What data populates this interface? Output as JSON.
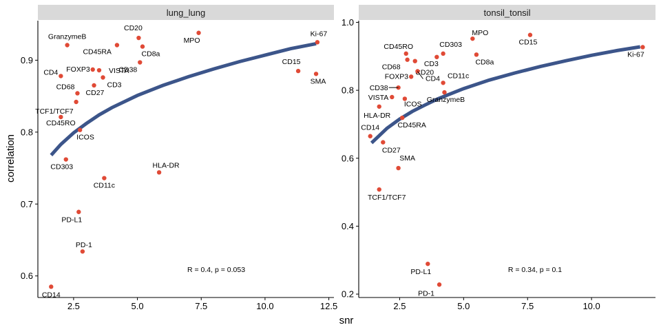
{
  "axis_titles": {
    "x": "snr",
    "y": "correlation"
  },
  "colors": {
    "point": "#e04a36",
    "fit_line": "#3c558a",
    "strip_bg": "#d9d9d9",
    "axis": "#000000"
  },
  "chart_data": [
    {
      "type": "scatter",
      "panel": "lung_lung",
      "xlim": [
        1.1,
        12.7
      ],
      "ylim": [
        0.57,
        0.955
      ],
      "x_ticks": [
        2.5,
        5.0,
        7.5,
        10.0,
        12.5
      ],
      "x_tick_labels": [
        "2.5",
        "5.0",
        "7.5",
        "10.0",
        "12.5"
      ],
      "y_ticks": [
        0.6,
        0.7,
        0.8,
        0.9
      ],
      "y_tick_labels": [
        "0.6",
        "0.7",
        "0.8",
        "0.9"
      ],
      "stat_label": "R = 0.4, p = 0.053",
      "fit": {
        "x": [
          1.62,
          2.0,
          2.5,
          3.0,
          3.5,
          4.0,
          5.0,
          6.0,
          7.0,
          8.0,
          9.0,
          10.0,
          11.0,
          12.0
        ],
        "y": [
          0.768,
          0.783,
          0.799,
          0.812,
          0.824,
          0.834,
          0.851,
          0.865,
          0.877,
          0.888,
          0.898,
          0.907,
          0.916,
          0.923
        ]
      },
      "points": [
        {
          "label": "GranzymeB",
          "x": 2.25,
          "y": 0.921
        },
        {
          "label": "CD20",
          "x": 5.05,
          "y": 0.931
        },
        {
          "label": "MPO",
          "x": 7.4,
          "y": 0.938
        },
        {
          "label": "Ki-67",
          "x": 12.05,
          "y": 0.925
        },
        {
          "label": "CD45RA",
          "x": 4.2,
          "y": 0.921
        },
        {
          "label": "CD8a",
          "x": 5.2,
          "y": 0.919
        },
        {
          "label": "VISTA",
          "x": 3.5,
          "y": 0.886
        },
        {
          "label": "FOXP3",
          "x": 3.25,
          "y": 0.887
        },
        {
          "label": "CD38",
          "x": 5.1,
          "y": 0.897
        },
        {
          "label": "CD4",
          "x": 2.0,
          "y": 0.878
        },
        {
          "label": "CD3",
          "x": 3.65,
          "y": 0.876
        },
        {
          "label": "CD15",
          "x": 11.3,
          "y": 0.885
        },
        {
          "label": "SMA",
          "x": 12.0,
          "y": 0.881
        },
        {
          "label": "CD68",
          "x": 2.65,
          "y": 0.854
        },
        {
          "label": "CD27",
          "x": 3.3,
          "y": 0.865
        },
        {
          "label": "TCF1/TCF7",
          "x": 2.6,
          "y": 0.842
        },
        {
          "label": "CD45RO",
          "x": 2.0,
          "y": 0.821
        },
        {
          "label": "ICOS",
          "x": 2.75,
          "y": 0.803
        },
        {
          "label": "CD303",
          "x": 2.2,
          "y": 0.762
        },
        {
          "label": "CD11c",
          "x": 3.7,
          "y": 0.736
        },
        {
          "label": "HLA-DR",
          "x": 5.85,
          "y": 0.744
        },
        {
          "label": "PD-L1",
          "x": 2.7,
          "y": 0.689
        },
        {
          "label": "PD-1",
          "x": 2.85,
          "y": 0.634
        },
        {
          "label": "CD14",
          "x": 1.62,
          "y": 0.585
        }
      ]
    },
    {
      "type": "scatter",
      "panel": "tonsil_tonsil",
      "xlim": [
        0.9,
        12.5
      ],
      "ylim": [
        0.19,
        1.005
      ],
      "x_ticks": [
        2.5,
        5.0,
        7.5,
        10.0
      ],
      "x_tick_labels": [
        "2.5",
        "5.0",
        "7.5",
        "10.0"
      ],
      "y_ticks": [
        0.2,
        0.4,
        0.6,
        0.8,
        1.0
      ],
      "y_tick_labels": [
        "0.2",
        "0.4",
        "0.6",
        "0.8",
        "1.0"
      ],
      "stat_label": "R = 0.34, p = 0.1",
      "fit": {
        "x": [
          1.4,
          2.0,
          2.5,
          3.0,
          3.5,
          4.0,
          5.0,
          6.0,
          7.0,
          8.0,
          9.0,
          10.0,
          11.0,
          11.9
        ],
        "y": [
          0.645,
          0.688,
          0.715,
          0.738,
          0.757,
          0.775,
          0.805,
          0.83,
          0.851,
          0.87,
          0.887,
          0.903,
          0.917,
          0.928
        ]
      },
      "points": [
        {
          "label": "MPO",
          "x": 5.35,
          "y": 0.952
        },
        {
          "label": "CD15",
          "x": 7.6,
          "y": 0.963
        },
        {
          "label": "Ki-67",
          "x": 12.0,
          "y": 0.927
        },
        {
          "label": "CD45RO",
          "x": 2.75,
          "y": 0.908
        },
        {
          "label": "CD303",
          "x": 4.2,
          "y": 0.908
        },
        {
          "label": "CD3",
          "x": 3.95,
          "y": 0.898
        },
        {
          "label": "CD8a",
          "x": 5.5,
          "y": 0.905
        },
        {
          "label": "CD68",
          "x": 2.8,
          "y": 0.89
        },
        {
          "label": "CD20",
          "x": 3.1,
          "y": 0.886
        },
        {
          "label": "FOXP3",
          "x": 2.95,
          "y": 0.84
        },
        {
          "label": "CD4",
          "x": 3.2,
          "y": 0.856
        },
        {
          "label": "CD11c",
          "x": 4.2,
          "y": 0.822
        },
        {
          "label": "CD38",
          "x": 2.45,
          "y": 0.808
        },
        {
          "label": "GranzymeB",
          "x": 4.25,
          "y": 0.794
        },
        {
          "label": "VISTA",
          "x": 2.2,
          "y": 0.78
        },
        {
          "label": "ICOS",
          "x": 2.7,
          "y": 0.775
        },
        {
          "label": "HLA-DR",
          "x": 1.7,
          "y": 0.752
        },
        {
          "label": "CD45RA",
          "x": 2.6,
          "y": 0.719
        },
        {
          "label": "CD14",
          "x": 1.35,
          "y": 0.665
        },
        {
          "label": "CD27",
          "x": 1.85,
          "y": 0.647
        },
        {
          "label": "SMA",
          "x": 2.45,
          "y": 0.571
        },
        {
          "label": "TCF1/TCF7",
          "x": 1.7,
          "y": 0.508
        },
        {
          "label": "PD-L1",
          "x": 3.6,
          "y": 0.289
        },
        {
          "label": "PD-1",
          "x": 4.05,
          "y": 0.228
        }
      ]
    }
  ]
}
